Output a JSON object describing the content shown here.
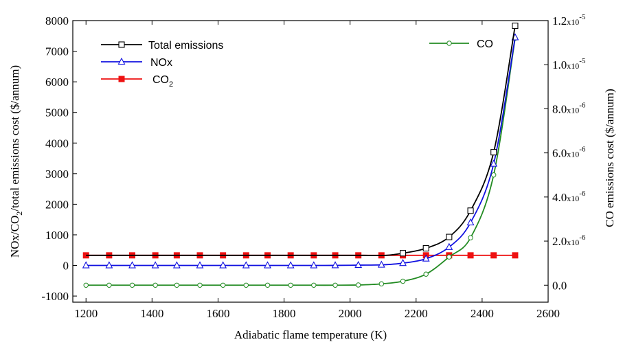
{
  "chart_data": {
    "type": "line",
    "xlabel": "Adiabatic flame temperature (K)",
    "ylabel_left": {
      "prefix": "NOx/CO",
      "sub": "2",
      "suffix": "/total emissions cost ($/annum)"
    },
    "ylabel_right": "CO emissions cost ($/annum)",
    "xlim": [
      1160,
      2600
    ],
    "ylim_left": [
      -1200,
      8000
    ],
    "ylim_right": [
      -7.7e-07,
      1.2e-05
    ],
    "x_ticks": [
      "1200",
      "1400",
      "1600",
      "1800",
      "2000",
      "2200",
      "2400",
      "2600"
    ],
    "y_left_ticks": [
      "8000",
      "7000",
      "6000",
      "5000",
      "4000",
      "3000",
      "2000",
      "1000",
      "0",
      "-1000"
    ],
    "y_right_ticks": [
      {
        "mant": "1.2",
        "exp": "-5",
        "value": 1.2e-05
      },
      {
        "mant": "1.0",
        "exp": "-5",
        "value": 1e-05
      },
      {
        "mant": "8.0",
        "exp": "-6",
        "value": 8e-06
      },
      {
        "mant": "6.0",
        "exp": "-6",
        "value": 6e-06
      },
      {
        "mant": "4.0",
        "exp": "-6",
        "value": 4e-06
      },
      {
        "mant": "2.0",
        "exp": "-6",
        "value": 2e-06
      },
      {
        "mant": "0.0",
        "exp": "",
        "value": 0.0
      }
    ],
    "times_sign": "x10",
    "series": [
      {
        "name": "Total emissions",
        "color": "#000000",
        "marker": "open-square",
        "axis": "left",
        "x": [
          2160,
          2230,
          2300,
          2365,
          2435,
          2500
        ],
        "y": [
          400,
          560,
          930,
          1790,
          3700,
          7830
        ]
      },
      {
        "name": "NOx",
        "color": "#1010e0",
        "marker": "open-triangle",
        "axis": "left",
        "x": [
          1200,
          1270,
          1340,
          1410,
          1475,
          1545,
          1615,
          1685,
          1750,
          1820,
          1890,
          1955,
          2025,
          2095,
          2160,
          2230,
          2300,
          2365,
          2435,
          2500
        ],
        "y": [
          0,
          0,
          0,
          0,
          0,
          0,
          0,
          0,
          0,
          0,
          0,
          2,
          10,
          20,
          75,
          220,
          600,
          1400,
          3320,
          7450
        ]
      },
      {
        "name": "CO",
        "name_sub": "2",
        "color": "#ee1111",
        "marker": "filled-square",
        "axis": "left",
        "x": [
          1200,
          1270,
          1340,
          1410,
          1475,
          1545,
          1615,
          1685,
          1750,
          1820,
          1890,
          1955,
          2025,
          2095,
          2160,
          2230,
          2300,
          2365,
          2435,
          2500
        ],
        "y": [
          330,
          330,
          330,
          330,
          330,
          330,
          330,
          330,
          330,
          330,
          330,
          330,
          330,
          330,
          330,
          330,
          330,
          330,
          330,
          330
        ]
      },
      {
        "name": "CO",
        "color": "#228b22",
        "marker": "open-circle",
        "axis": "right",
        "x": [
          1200,
          1270,
          1340,
          1410,
          1475,
          1545,
          1615,
          1685,
          1750,
          1820,
          1890,
          1955,
          2025,
          2095,
          2160,
          2230,
          2300,
          2365,
          2435,
          2500
        ],
        "y": [
          0,
          0,
          0,
          0,
          0,
          0,
          0,
          0,
          0,
          0,
          0,
          0,
          1e-08,
          6e-08,
          1.8e-07,
          5e-07,
          1.28e-06,
          2.15e-06,
          5e-06,
          1.12e-05
        ]
      }
    ],
    "legend": [
      {
        "label": "Total emissions",
        "sub": "",
        "series": 0
      },
      {
        "label": "NOx",
        "sub": "",
        "series": 1
      },
      {
        "label": "CO",
        "sub": "2",
        "series": 2
      },
      {
        "label": "CO",
        "sub": "",
        "series": 3
      }
    ]
  }
}
